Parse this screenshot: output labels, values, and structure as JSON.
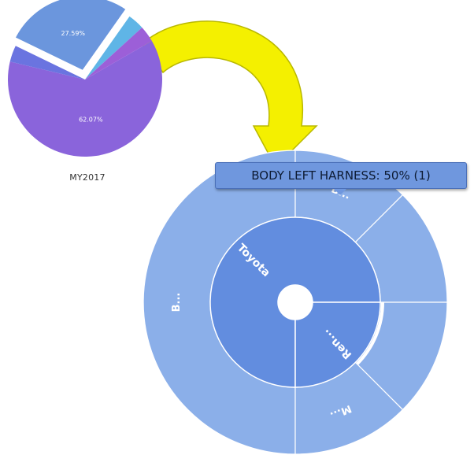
{
  "chart_data": [
    {
      "type": "pie",
      "caption": "MY2017",
      "slices": [
        {
          "label": "62.07%",
          "value": 62.07,
          "color": "#8a64db",
          "show_label": true
        },
        {
          "label": "",
          "value": 3.45,
          "color": "#6a74e0",
          "show_label": false
        },
        {
          "label": "27.59%",
          "value": 27.59,
          "color": "#6b96dd",
          "exploded": true,
          "show_label": true
        },
        {
          "label": "",
          "value": 3.45,
          "color": "#5fb5e6",
          "show_label": false
        },
        {
          "label": "",
          "value": 3.44,
          "color": "#9c5fd8",
          "show_label": false
        }
      ]
    },
    {
      "type": "sunburst",
      "inner_ring": [
        {
          "label": "Toyota",
          "value": 75,
          "color": "#628ddf"
        },
        {
          "label": "Ren...",
          "value": 25,
          "color": "#628ddf"
        }
      ],
      "outer_ring": [
        {
          "label": "B...",
          "value": 50,
          "color": "#8bafe9"
        },
        {
          "label": "B...",
          "value": 12.5,
          "color": "#8bafe9"
        },
        {
          "label": "",
          "value": 12.5,
          "color": "#8bafe9"
        },
        {
          "label": "",
          "value": 12.5,
          "color": "#8bafe9",
          "highlighted": true
        },
        {
          "label": "M...",
          "value": 12.5,
          "color": "#8bafe9"
        }
      ],
      "tooltip": "BODY LEFT HARNESS: 50% (1)"
    }
  ],
  "colors": {
    "arrow_fill": "#f4f000",
    "arrow_stroke": "#b9b800"
  }
}
